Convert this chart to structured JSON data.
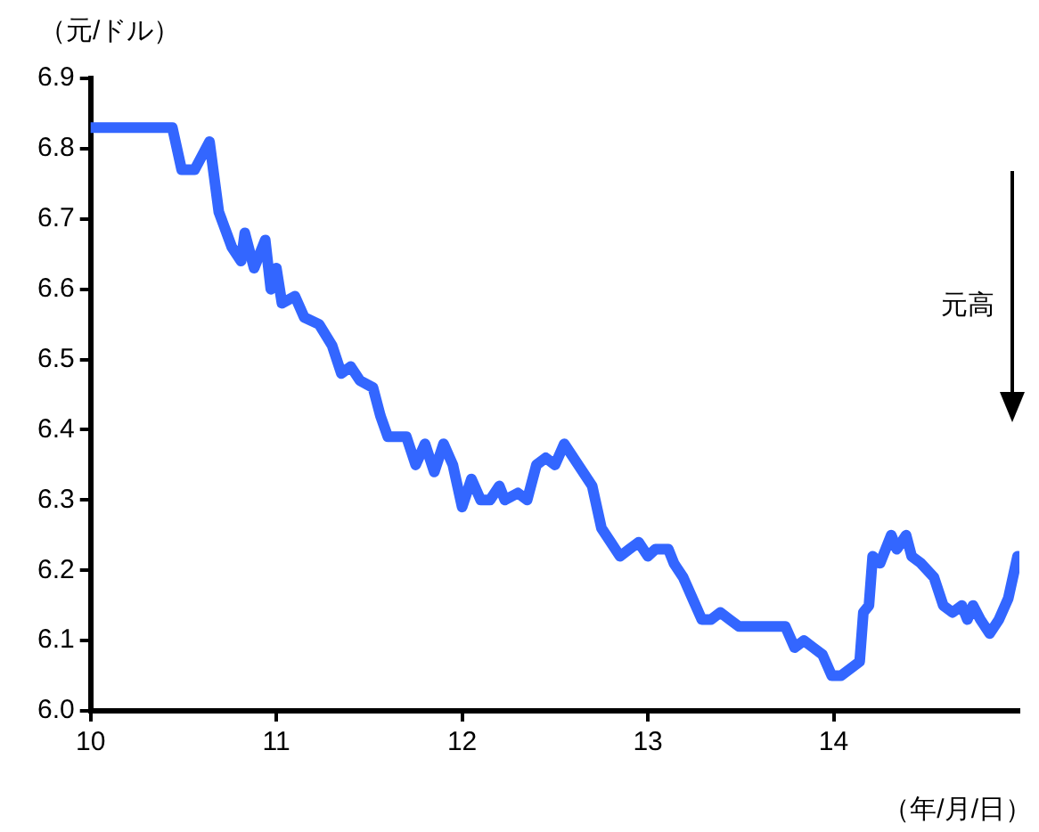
{
  "chart_data": {
    "type": "line",
    "ylabel": "（元/ドル）",
    "xlabel": "（年/月/日）",
    "annotations": [
      "元高"
    ],
    "x": [
      10.0,
      10.11,
      10.31,
      10.44,
      10.49,
      10.56,
      10.64,
      10.69,
      10.76,
      10.81,
      10.83,
      10.88,
      10.94,
      10.97,
      11.0,
      11.03,
      11.1,
      11.15,
      11.23,
      11.3,
      11.35,
      11.4,
      11.45,
      11.52,
      11.56,
      11.6,
      11.7,
      11.75,
      11.8,
      11.85,
      11.9,
      11.95,
      12.0,
      12.05,
      12.1,
      12.15,
      12.2,
      12.23,
      12.3,
      12.35,
      12.4,
      12.45,
      12.5,
      12.55,
      12.6,
      12.65,
      12.7,
      12.75,
      12.8,
      12.85,
      12.9,
      12.95,
      13.0,
      13.04,
      13.11,
      13.14,
      13.19,
      13.24,
      13.29,
      13.34,
      13.39,
      13.44,
      13.49,
      13.59,
      13.74,
      13.79,
      13.84,
      13.89,
      13.94,
      13.99,
      14.04,
      14.14,
      14.16,
      14.19,
      14.21,
      14.25,
      14.31,
      14.34,
      14.39,
      14.42,
      14.47,
      14.54,
      14.59,
      14.64,
      14.69,
      14.72,
      14.75,
      14.79,
      14.84,
      14.89,
      14.94,
      14.99
    ],
    "series": [
      {
        "color": "#3366ff",
        "values": [
          6.83,
          6.83,
          6.83,
          6.83,
          6.77,
          6.77,
          6.81,
          6.71,
          6.66,
          6.64,
          6.68,
          6.63,
          6.67,
          6.6,
          6.63,
          6.58,
          6.59,
          6.56,
          6.55,
          6.52,
          6.48,
          6.49,
          6.47,
          6.46,
          6.42,
          6.39,
          6.39,
          6.35,
          6.38,
          6.34,
          6.38,
          6.35,
          6.29,
          6.33,
          6.3,
          6.3,
          6.32,
          6.3,
          6.31,
          6.3,
          6.35,
          6.36,
          6.35,
          6.38,
          6.36,
          6.34,
          6.32,
          6.26,
          6.24,
          6.22,
          6.23,
          6.24,
          6.22,
          6.23,
          6.23,
          6.21,
          6.19,
          6.16,
          6.13,
          6.13,
          6.14,
          6.13,
          6.12,
          6.12,
          6.12,
          6.09,
          6.1,
          6.09,
          6.08,
          6.05,
          6.05,
          6.07,
          6.14,
          6.15,
          6.22,
          6.21,
          6.25,
          6.23,
          6.25,
          6.22,
          6.21,
          6.19,
          6.15,
          6.14,
          6.15,
          6.13,
          6.15,
          6.13,
          6.11,
          6.13,
          6.16,
          6.22
        ]
      }
    ],
    "xlim": [
      10,
      15
    ],
    "xticks": [
      10,
      11,
      12,
      13,
      14
    ],
    "ylim": [
      6.0,
      6.9
    ],
    "yticks": [
      {
        "value": 6.0,
        "label": "6.0"
      },
      6.1,
      6.2,
      6.3,
      6.4,
      6.5,
      6.6,
      6.7,
      6.8,
      6.9
    ],
    "grid": false,
    "legend": false,
    "marker": "none",
    "line_style": "solid"
  }
}
